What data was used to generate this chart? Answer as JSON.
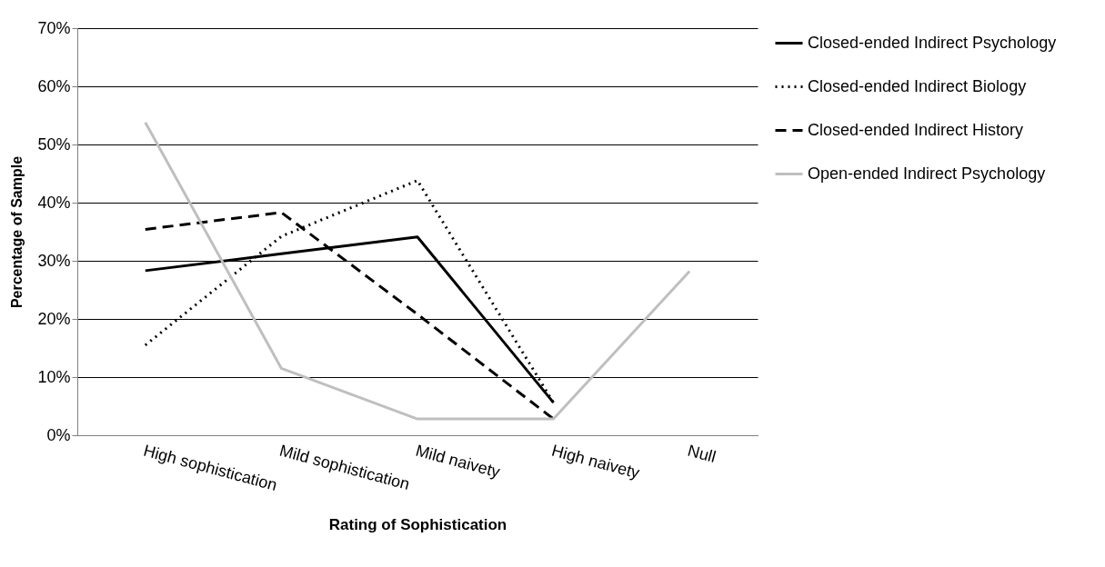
{
  "chart_data": {
    "type": "line",
    "xlabel": "Rating of Sophistication",
    "ylabel": "Percentage of Sample",
    "categories": [
      "High sophistication",
      "Mild sophistication",
      "Mild naivety",
      "High naivety",
      "Null"
    ],
    "series": [
      {
        "name": "Closed-ended Indirect Psychology",
        "color": "#000000",
        "line_style": "solid",
        "values": [
          28.3,
          31.2,
          34.1,
          5.6,
          null
        ]
      },
      {
        "name": "Closed-ended Indirect Biology",
        "color": "#000000",
        "line_style": "dotted",
        "values": [
          15.5,
          34.2,
          43.8,
          5.6,
          null
        ]
      },
      {
        "name": "Closed-ended Indirect History",
        "color": "#000000",
        "line_style": "dashed",
        "values": [
          35.4,
          38.3,
          20.8,
          2.8,
          null
        ]
      },
      {
        "name": "Open-ended Indirect Psychology",
        "color": "#bfbfbf",
        "line_style": "solid",
        "values": [
          53.8,
          11.5,
          2.8,
          2.8,
          28.2
        ]
      }
    ],
    "ylim": [
      0,
      70
    ],
    "yticks": [
      {
        "value": 0,
        "label": "0%"
      },
      {
        "value": 10,
        "label": "10%"
      },
      {
        "value": 20,
        "label": "20%"
      },
      {
        "value": 30,
        "label": "30%"
      },
      {
        "value": 40,
        "label": "40%"
      },
      {
        "value": 50,
        "label": "50%"
      },
      {
        "value": 60,
        "label": "60%"
      },
      {
        "value": 70,
        "label": "70%"
      }
    ],
    "grid": "y",
    "legend": "right",
    "marker": "none"
  }
}
